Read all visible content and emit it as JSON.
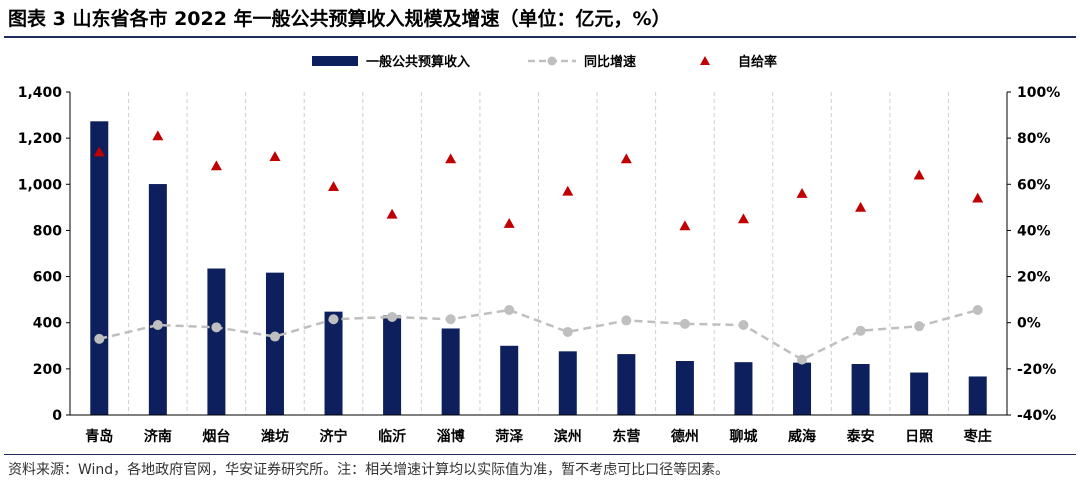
{
  "title": "图表 3 山东省各市 2022 年一般公共预算收入规模及增速（单位：亿元，%）",
  "source": "资料来源：Wind，各地政府官网，华安证券研究所。注：相关增速计算均以实际值为准，暂不考虑可比口径等因素。",
  "colors": {
    "bar": "#0d1f5c",
    "line": "#bfbfbf",
    "marker": "#c00000",
    "title_rule": "#1f2d5a"
  },
  "chart_data": {
    "type": "bar",
    "categories": [
      "青岛",
      "济南",
      "烟台",
      "潍坊",
      "济宁",
      "临沂",
      "淄博",
      "菏泽",
      "滨州",
      "东营",
      "德州",
      "聊城",
      "威海",
      "泰安",
      "日照",
      "枣庄"
    ],
    "series": [
      {
        "name": "一般公共预算收入",
        "type": "bar",
        "axis": "left",
        "values": [
          1273,
          1001,
          635,
          617,
          448,
          431,
          375,
          300,
          276,
          264,
          234,
          229,
          227,
          221,
          184,
          167
        ]
      },
      {
        "name": "同比增速",
        "type": "line",
        "axis": "right",
        "values": [
          -7.0,
          -1.0,
          -2.0,
          -6.0,
          1.5,
          2.5,
          1.5,
          5.5,
          -4.0,
          1.0,
          -0.5,
          -1.0,
          -16.0,
          -3.5,
          -1.5,
          5.5
        ]
      },
      {
        "name": "自给率",
        "type": "scatter",
        "axis": "right",
        "values": [
          74,
          81,
          68,
          72,
          59,
          47,
          71,
          43,
          57,
          71,
          42,
          45,
          56,
          50,
          64,
          54
        ]
      }
    ],
    "left_axis": {
      "min": 0,
      "max": 1400,
      "step": 200,
      "tick_labels": [
        "0",
        "200",
        "400",
        "600",
        "800",
        "1,000",
        "1,200",
        "1,400"
      ]
    },
    "right_axis": {
      "min": -40,
      "max": 100,
      "step": 20,
      "tick_labels": [
        "-40%",
        "-20%",
        "0%",
        "20%",
        "40%",
        "60%",
        "80%",
        "100%"
      ]
    },
    "legend_position": "top",
    "grid": "vertical-dashed"
  }
}
